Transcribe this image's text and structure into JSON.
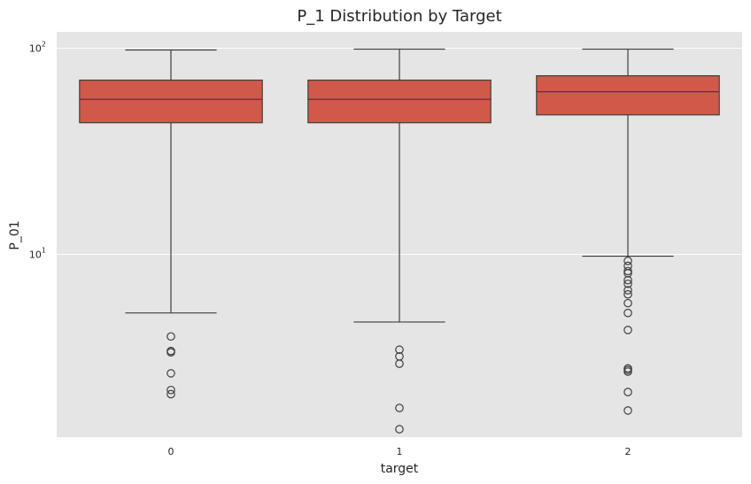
{
  "chart_data": {
    "type": "box",
    "title": "P_1 Distribution by Target",
    "xlabel": "target",
    "ylabel": "P_01",
    "y_scale": "log",
    "ylim": [
      1.3,
      120
    ],
    "y_ticks": [
      {
        "value": 10,
        "base": "10",
        "exp": "1"
      },
      {
        "value": 100,
        "base": "10",
        "exp": "2"
      }
    ],
    "grid": true,
    "colors": {
      "plot_bg": "#e5e5e5",
      "grid": "#ffffff",
      "box_fill": "#d0594a",
      "line": "#3f3f3f"
    },
    "categories": [
      "0",
      "1",
      "2"
    ],
    "boxes": [
      {
        "category": "0",
        "whisker_low": 5.2,
        "q1": 43.5,
        "median": 56.5,
        "q3": 70,
        "whisker_high": 98,
        "outliers": [
          4.0,
          3.4,
          3.35,
          2.65,
          2.2,
          2.1
        ]
      },
      {
        "category": "1",
        "whisker_low": 4.7,
        "q1": 43.5,
        "median": 56.5,
        "q3": 70,
        "whisker_high": 99,
        "outliers": [
          3.45,
          3.2,
          2.95,
          1.8,
          1.42
        ]
      },
      {
        "category": "2",
        "whisker_low": 9.8,
        "q1": 47.5,
        "median": 61.5,
        "q3": 73.5,
        "whisker_high": 99,
        "outliers": [
          9.3,
          8.8,
          8.3,
          8.1,
          7.5,
          7.2,
          6.7,
          6.4,
          5.8,
          5.2,
          4.3,
          2.8,
          2.75,
          2.7,
          2.15,
          1.75
        ]
      }
    ]
  }
}
